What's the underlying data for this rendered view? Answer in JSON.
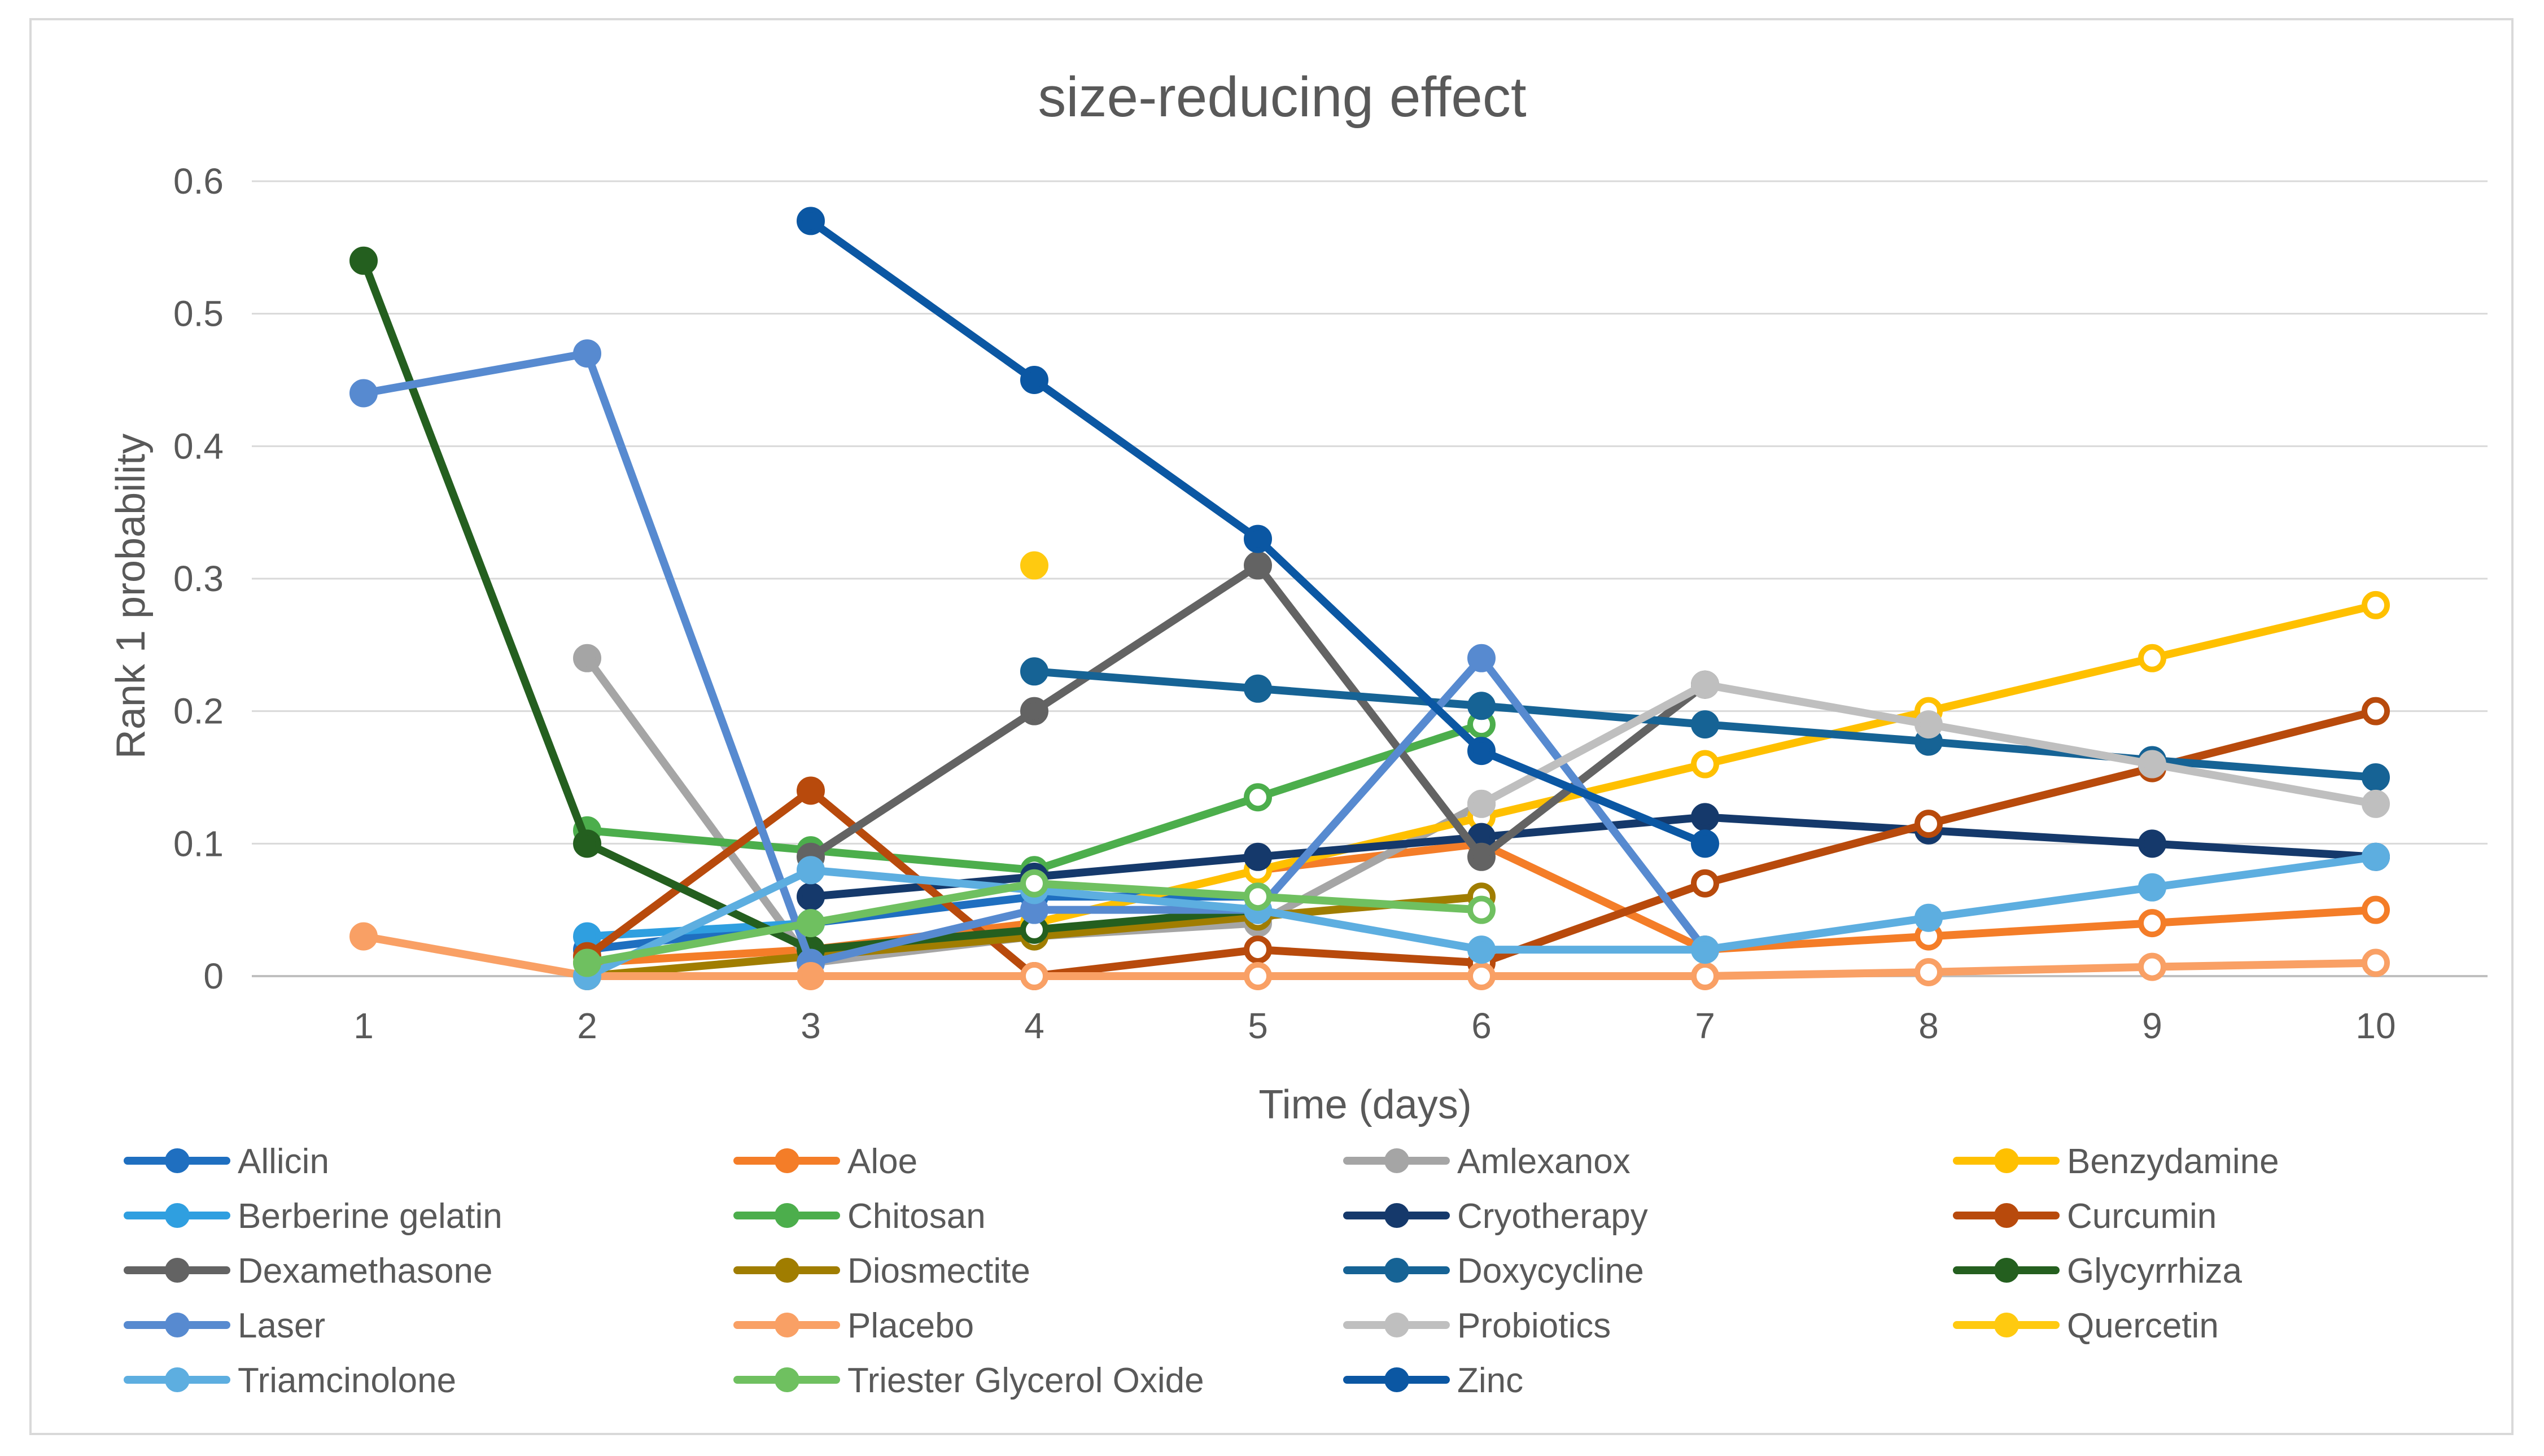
{
  "chart_data": {
    "type": "line",
    "title": "size-reducing effect",
    "xlabel": "Time (days)",
    "ylabel": "Rank 1 probability",
    "x": [
      1,
      2,
      3,
      4,
      5,
      6,
      7,
      8,
      9,
      10
    ],
    "xticks": [
      "1",
      "2",
      "3",
      "4",
      "5",
      "6",
      "7",
      "8",
      "9",
      "10"
    ],
    "ylim": [
      0,
      0.6
    ],
    "yticks": [
      "0",
      "0.1",
      "0.2",
      "0.3",
      "0.4",
      "0.5",
      "0.6"
    ],
    "grid": true,
    "legend": "bottom",
    "series": [
      {
        "name": "Allicin",
        "color": "#1f6fc0",
        "values": [
          null,
          0.02,
          0.04,
          0.06,
          0.06,
          null,
          null,
          null,
          null,
          null
        ]
      },
      {
        "name": "Aloe",
        "color": "#f47d28",
        "values": [
          null,
          0.01,
          0.02,
          0.04,
          0.08,
          0.1,
          0.02,
          0.03,
          0.04,
          0.05
        ]
      },
      {
        "name": "Amlexanox",
        "color": "#a5a5a5",
        "values": [
          null,
          0.24,
          0.01,
          0.03,
          0.04,
          0.13,
          0.22,
          null,
          null,
          null
        ]
      },
      {
        "name": "Benzydamine",
        "color": "#ffc000",
        "values": [
          null,
          null,
          null,
          0.04,
          0.08,
          0.12,
          0.16,
          0.2,
          0.24,
          0.28
        ]
      },
      {
        "name": "Berberine gelatin",
        "color": "#2f9fe0",
        "values": [
          null,
          0.03,
          0.04,
          null,
          null,
          null,
          null,
          null,
          null,
          null
        ]
      },
      {
        "name": "Chitosan",
        "color": "#4cae4c",
        "values": [
          null,
          0.11,
          0.095,
          0.08,
          0.135,
          0.19,
          null,
          null,
          null,
          null
        ]
      },
      {
        "name": "Cryotherapy",
        "color": "#15396b",
        "values": [
          null,
          null,
          0.06,
          0.075,
          0.09,
          0.105,
          0.12,
          0.11,
          0.1,
          0.09
        ]
      },
      {
        "name": "Curcumin",
        "color": "#b84a0c",
        "values": [
          null,
          0.015,
          0.14,
          0.0,
          0.02,
          0.01,
          0.07,
          0.115,
          0.157,
          0.2
        ]
      },
      {
        "name": "Dexamethasone",
        "color": "#636363",
        "values": [
          null,
          null,
          0.09,
          0.2,
          0.31,
          0.09,
          0.22,
          null,
          null,
          null
        ]
      },
      {
        "name": "Diosmectite",
        "color": "#a07d00",
        "values": [
          null,
          0.0,
          0.015,
          0.03,
          0.045,
          0.06,
          null,
          null,
          null,
          null
        ]
      },
      {
        "name": "Doxycycline",
        "color": "#166395",
        "values": [
          null,
          null,
          null,
          0.23,
          0.217,
          0.204,
          0.19,
          0.177,
          0.163,
          0.15
        ]
      },
      {
        "name": "Glycyrrhiza",
        "color": "#245f1f",
        "values": [
          0.54,
          0.1,
          0.02,
          0.035,
          0.05,
          null,
          null,
          null,
          null,
          null
        ]
      },
      {
        "name": "Laser",
        "color": "#578ad0",
        "values": [
          0.44,
          0.47,
          0.01,
          0.05,
          0.05,
          0.24,
          0.02,
          null,
          null,
          null
        ]
      },
      {
        "name": "Placebo",
        "color": "#f9a065",
        "values": [
          0.03,
          0.0,
          0.0,
          0.0,
          0.0,
          0.0,
          0.0,
          0.003,
          0.007,
          0.01
        ]
      },
      {
        "name": "Probiotics",
        "color": "#bfbfbf",
        "values": [
          null,
          null,
          null,
          null,
          null,
          0.13,
          0.22,
          0.19,
          0.16,
          0.13
        ]
      },
      {
        "name": "Quercetin",
        "color": "#ffca10",
        "values": [
          null,
          null,
          null,
          0.31,
          null,
          null,
          null,
          null,
          null,
          null
        ]
      },
      {
        "name": "Triamcinolone",
        "color": "#5daee0",
        "values": [
          null,
          0.0,
          0.08,
          0.065,
          0.05,
          0.02,
          0.02,
          0.044,
          0.067,
          0.09
        ]
      },
      {
        "name": "Triester Glycerol Oxide",
        "color": "#6fc060",
        "values": [
          null,
          0.01,
          0.04,
          0.07,
          0.06,
          0.05,
          null,
          null,
          null,
          null
        ]
      },
      {
        "name": "Zinc",
        "color": "#0b57a3",
        "values": [
          null,
          null,
          0.57,
          0.45,
          0.33,
          0.17,
          0.1,
          null,
          null,
          null
        ]
      }
    ]
  }
}
